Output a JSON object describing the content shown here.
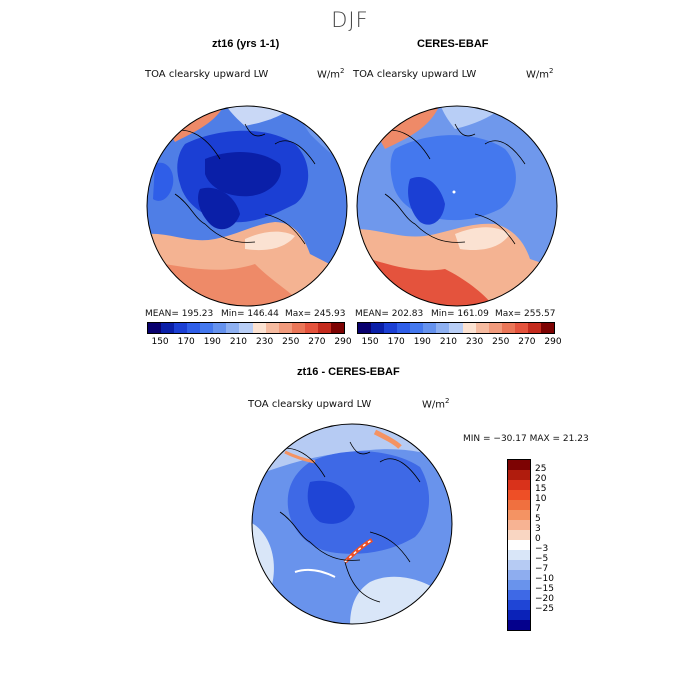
{
  "season_title": "DJF",
  "colors": {
    "abs_scale": [
      "#08006e",
      "#0a1fa8",
      "#1b3fd4",
      "#2f5ee8",
      "#4478ee",
      "#6592ee",
      "#8eb0f1",
      "#b8cef6",
      "#fbe2d2",
      "#f6bba0",
      "#f19a7c",
      "#ea7658",
      "#e4533d",
      "#c42b1e",
      "#7d0303"
    ],
    "diff_scale": [
      "#7d0303",
      "#b01c0d",
      "#d9321b",
      "#ee4f26",
      "#f0703f",
      "#f49363",
      "#f7b393",
      "#f9d6c2",
      "#ffffff",
      "#d9e6f8",
      "#b6cbf3",
      "#8ead ef",
      "#6993ec",
      "#3e69e6",
      "#1f45d6",
      "#0a22b8",
      "#04008c"
    ]
  },
  "panels": [
    {
      "title": "zt16 (yrs 1-1)",
      "variable": "TOA clearsky upward LW",
      "units": "W/m",
      "units_sup": "2",
      "stats": {
        "mean": "MEAN= 195.23",
        "min": "Min= 146.44",
        "max": "Max= 245.93"
      }
    },
    {
      "title": "CERES-EBAF",
      "variable": "TOA clearsky upward LW",
      "units": "W/m",
      "units_sup": "2",
      "stats": {
        "mean": "MEAN= 202.83",
        "min": "Min= 161.09",
        "max": "Max= 255.57"
      }
    }
  ],
  "abs_colorbar_ticks": [
    "150",
    "170",
    "190",
    "210",
    "230",
    "250",
    "270",
    "290"
  ],
  "difference": {
    "title": "zt16 - CERES-EBAF",
    "variable": "TOA clearsky upward LW",
    "units": "W/m",
    "units_sup": "2",
    "minmax": "MIN = −30.17 MAX =  21.23",
    "colorbar_ticks": [
      "25",
      "20",
      "15",
      "10",
      "7",
      "5",
      "3",
      "0",
      "−3",
      "−5",
      "−7",
      "−10",
      "−15",
      "−20",
      "−25"
    ]
  }
}
